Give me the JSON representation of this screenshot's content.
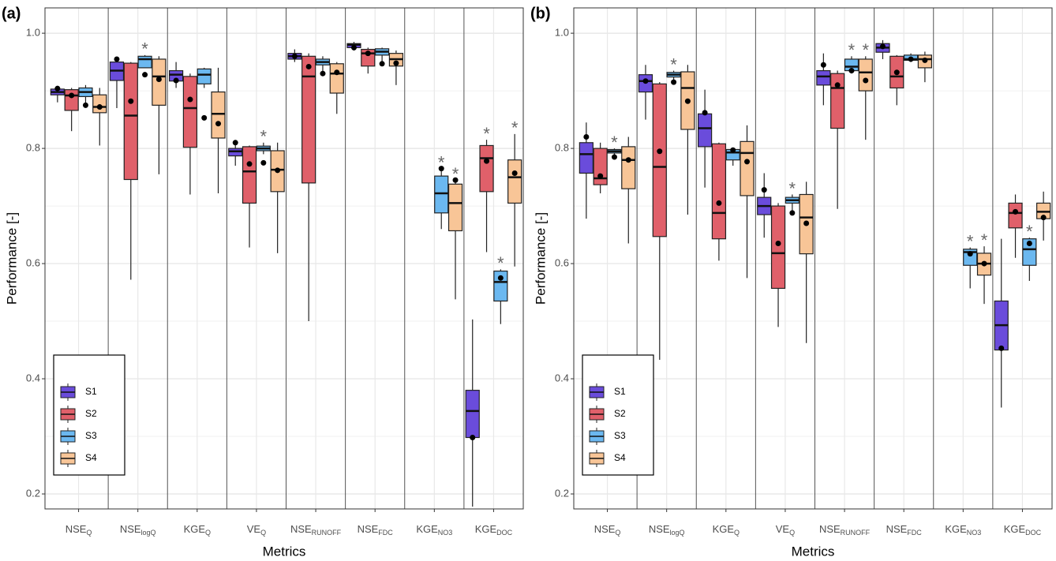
{
  "chart_data": [
    {
      "type": "boxplot",
      "panel_label": "(a)",
      "y_label": "Performance [-]",
      "x_label": "Metrics",
      "categories": [
        {
          "name": "NSE",
          "sub": "Q"
        },
        {
          "name": "NSE",
          "sub": "logQ"
        },
        {
          "name": "KGE",
          "sub": "Q"
        },
        {
          "name": "VE",
          "sub": "Q"
        },
        {
          "name": "NSE",
          "sub": "RUNOFF"
        },
        {
          "name": "NSE",
          "sub": "FDC"
        },
        {
          "name": "KGE",
          "sub": "NO3"
        },
        {
          "name": "KGE",
          "sub": "DOC"
        }
      ],
      "ylim": [
        0.174,
        1.044
      ],
      "yticks": [
        0.2,
        0.4,
        0.6,
        0.8,
        {
          "value": 1.0,
          "label": "1.0"
        }
      ],
      "minor_yticks": [
        0.3,
        0.5,
        0.7,
        0.9
      ],
      "grid": true,
      "legend_position": "bottom-left",
      "significance_marker": "*",
      "series": [
        {
          "name": "S1",
          "color": "#6a4cdb",
          "whisker_low": [
            0.88,
            0.87,
            0.905,
            0.77,
            0.95,
            0.97,
            null,
            0.178
          ],
          "q1": [
            0.893,
            0.918,
            0.917,
            0.787,
            0.955,
            0.975,
            null,
            0.298
          ],
          "median": [
            0.898,
            0.935,
            0.928,
            0.795,
            0.96,
            0.98,
            null,
            0.344
          ],
          "q3": [
            0.903,
            0.95,
            0.935,
            0.8,
            0.965,
            0.982,
            null,
            0.38
          ],
          "whisker_high": [
            0.905,
            0.958,
            0.95,
            0.81,
            0.972,
            0.985,
            null,
            0.503
          ],
          "mean": [
            0.904,
            0.955,
            0.918,
            0.81,
            0.96,
            0.975,
            null,
            0.298
          ],
          "significant": [
            false,
            false,
            false,
            false,
            false,
            false,
            false,
            false
          ]
        },
        {
          "name": "S2",
          "color": "#e0606a",
          "whisker_low": [
            0.83,
            0.572,
            0.72,
            0.628,
            0.5,
            0.93,
            null,
            0.62
          ],
          "q1": [
            0.866,
            0.746,
            0.802,
            0.705,
            0.74,
            0.943,
            null,
            0.725
          ],
          "median": [
            0.892,
            0.857,
            0.87,
            0.76,
            0.925,
            0.965,
            null,
            0.783
          ],
          "q3": [
            0.902,
            0.948,
            0.925,
            0.803,
            0.96,
            0.972,
            null,
            0.805
          ],
          "whisker_high": [
            0.905,
            0.95,
            0.93,
            0.805,
            0.965,
            0.975,
            null,
            0.815
          ],
          "mean": [
            0.892,
            0.882,
            0.885,
            0.773,
            0.942,
            0.965,
            null,
            0.778
          ],
          "significant": [
            false,
            false,
            false,
            false,
            false,
            false,
            false,
            true
          ]
        },
        {
          "name": "S3",
          "color": "#6bb8f0",
          "whisker_low": [
            0.875,
            0.94,
            0.905,
            0.79,
            0.93,
            0.95,
            0.66,
            0.495
          ],
          "q1": [
            0.89,
            0.94,
            0.912,
            0.796,
            0.945,
            0.962,
            0.688,
            0.535
          ],
          "median": [
            0.898,
            0.955,
            0.928,
            0.8,
            0.95,
            0.968,
            0.722,
            0.568
          ],
          "q3": [
            0.905,
            0.96,
            0.938,
            0.804,
            0.955,
            0.973,
            0.752,
            0.587
          ],
          "whisker_high": [
            0.91,
            0.962,
            0.94,
            0.81,
            0.96,
            0.975,
            0.765,
            0.59
          ],
          "mean": [
            0.875,
            0.928,
            0.853,
            0.775,
            0.93,
            0.947,
            0.765,
            0.575
          ],
          "significant": [
            false,
            true,
            false,
            true,
            false,
            false,
            true,
            true
          ]
        },
        {
          "name": "S4",
          "color": "#f8c597",
          "whisker_low": [
            0.805,
            0.755,
            0.722,
            0.618,
            0.86,
            0.91,
            0.538,
            0.595
          ],
          "q1": [
            0.862,
            0.875,
            0.818,
            0.725,
            0.896,
            0.943,
            0.657,
            0.705
          ],
          "median": [
            0.872,
            0.925,
            0.86,
            0.763,
            0.93,
            0.955,
            0.705,
            0.75
          ],
          "q3": [
            0.893,
            0.955,
            0.898,
            0.796,
            0.947,
            0.965,
            0.738,
            0.78
          ],
          "whisker_high": [
            0.905,
            0.96,
            0.94,
            0.81,
            0.95,
            0.97,
            0.745,
            0.825
          ],
          "mean": [
            0.872,
            0.92,
            0.843,
            0.762,
            0.932,
            0.948,
            0.745,
            0.757
          ],
          "significant": [
            false,
            false,
            false,
            false,
            false,
            false,
            true,
            true
          ]
        }
      ]
    },
    {
      "type": "boxplot",
      "panel_label": "(b)",
      "y_label": "Performance [-]",
      "x_label": "Metrics",
      "categories": [
        {
          "name": "NSE",
          "sub": "Q"
        },
        {
          "name": "NSE",
          "sub": "logQ"
        },
        {
          "name": "KGE",
          "sub": "Q"
        },
        {
          "name": "VE",
          "sub": "Q"
        },
        {
          "name": "NSE",
          "sub": "RUNOFF"
        },
        {
          "name": "NSE",
          "sub": "FDC"
        },
        {
          "name": "KGE",
          "sub": "NO3"
        },
        {
          "name": "KGE",
          "sub": "DOC"
        }
      ],
      "ylim": [
        0.174,
        1.044
      ],
      "yticks": [
        0.2,
        0.4,
        0.6,
        0.8,
        {
          "value": 1.0,
          "label": "1.0"
        }
      ],
      "minor_yticks": [
        0.3,
        0.5,
        0.7,
        0.9
      ],
      "grid": true,
      "legend_position": "bottom-left",
      "significance_marker": "*",
      "series": [
        {
          "name": "S1",
          "color": "#6a4cdb",
          "whisker_low": [
            0.678,
            0.85,
            0.732,
            0.645,
            0.875,
            0.955,
            null,
            0.35
          ],
          "q1": [
            0.757,
            0.898,
            0.803,
            0.685,
            0.91,
            0.967,
            null,
            0.45
          ],
          "median": [
            0.79,
            0.917,
            0.835,
            0.7,
            0.925,
            0.975,
            null,
            0.493
          ],
          "q3": [
            0.81,
            0.928,
            0.86,
            0.715,
            0.935,
            0.982,
            null,
            0.535
          ],
          "whisker_high": [
            0.845,
            0.945,
            0.902,
            0.757,
            0.965,
            0.988,
            null,
            0.643
          ],
          "mean": [
            0.82,
            0.917,
            0.862,
            0.728,
            0.945,
            0.977,
            null,
            0.453
          ],
          "significant": [
            false,
            false,
            false,
            false,
            false,
            false,
            false,
            false
          ]
        },
        {
          "name": "S2",
          "color": "#e0606a",
          "whisker_low": [
            0.722,
            0.433,
            0.605,
            0.49,
            0.695,
            0.875,
            null,
            0.61
          ],
          "q1": [
            0.737,
            0.647,
            0.643,
            0.557,
            0.835,
            0.905,
            null,
            0.662
          ],
          "median": [
            0.748,
            0.768,
            0.688,
            0.618,
            0.905,
            0.925,
            null,
            0.688
          ],
          "q3": [
            0.8,
            0.912,
            0.808,
            0.7,
            0.93,
            0.96,
            null,
            0.705
          ],
          "whisker_high": [
            0.81,
            0.915,
            0.81,
            0.705,
            0.935,
            0.962,
            null,
            0.72
          ],
          "mean": [
            0.752,
            0.795,
            0.705,
            0.635,
            0.91,
            0.932,
            null,
            0.69
          ],
          "significant": [
            false,
            false,
            false,
            false,
            false,
            false,
            false,
            false
          ]
        },
        {
          "name": "S3",
          "color": "#6bb8f0",
          "whisker_low": [
            0.785,
            0.915,
            0.77,
            0.69,
            0.93,
            0.95,
            0.557,
            0.57
          ],
          "q1": [
            0.792,
            0.924,
            0.78,
            0.705,
            0.935,
            0.953,
            0.597,
            0.597
          ],
          "median": [
            0.795,
            0.928,
            0.793,
            0.71,
            0.942,
            0.955,
            0.62,
            0.625
          ],
          "q3": [
            0.798,
            0.932,
            0.798,
            0.715,
            0.955,
            0.962,
            0.625,
            0.643
          ],
          "whisker_high": [
            0.8,
            0.935,
            0.8,
            0.72,
            0.96,
            0.965,
            0.628,
            0.645
          ],
          "mean": [
            0.785,
            0.915,
            0.797,
            0.688,
            0.935,
            0.955,
            0.617,
            0.635
          ],
          "significant": [
            true,
            true,
            false,
            true,
            true,
            false,
            true,
            true
          ]
        },
        {
          "name": "S4",
          "color": "#f8c597",
          "whisker_low": [
            0.635,
            0.685,
            0.575,
            0.462,
            0.815,
            0.915,
            0.53,
            0.64
          ],
          "q1": [
            0.73,
            0.833,
            0.718,
            0.617,
            0.9,
            0.94,
            0.58,
            0.678
          ],
          "median": [
            0.78,
            0.905,
            0.792,
            0.68,
            0.932,
            0.955,
            0.6,
            0.69
          ],
          "q3": [
            0.803,
            0.933,
            0.812,
            0.72,
            0.955,
            0.962,
            0.618,
            0.705
          ],
          "whisker_high": [
            0.82,
            0.945,
            0.84,
            0.742,
            0.96,
            0.968,
            0.63,
            0.725
          ],
          "mean": [
            0.78,
            0.882,
            0.777,
            0.67,
            0.918,
            0.953,
            0.6,
            0.68
          ],
          "significant": [
            false,
            false,
            false,
            false,
            true,
            false,
            true,
            false
          ]
        }
      ]
    }
  ]
}
